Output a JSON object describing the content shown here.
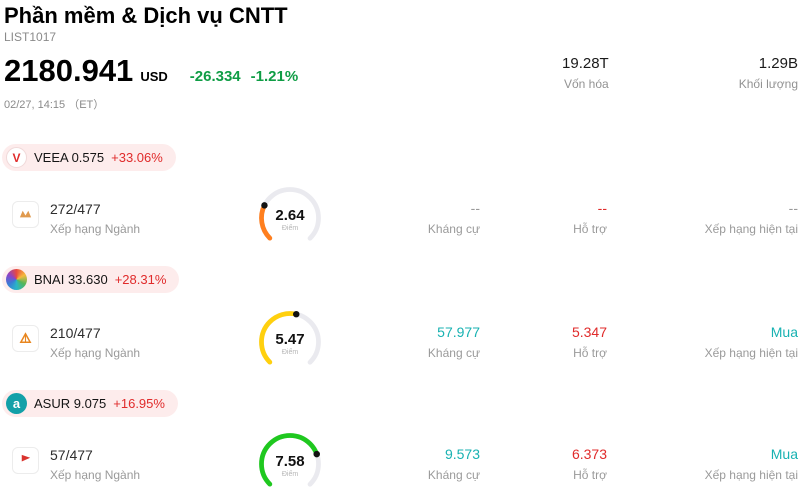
{
  "header": {
    "title": "Phần mềm & Dịch vụ CNTT",
    "list_id": "LIST1017",
    "price": "2180.941",
    "currency": "USD",
    "change_abs": "-26.334",
    "change_pct": "-1.21%",
    "datetime": "02/27, 14:15 （ET）",
    "market_cap": {
      "value": "19.28T",
      "label": "Vốn hóa"
    },
    "volume": {
      "value": "1.29B",
      "label": "Khối lượng"
    }
  },
  "colors": {
    "up": "#e02b2b",
    "down": "#0f9d45",
    "teal": "#18b2b2",
    "muted": "#9a9a9a"
  },
  "icons": {
    "veea_logo": "V",
    "asur_logo": "a"
  },
  "rows": [
    {
      "ticker_price": "VEEA 0.575",
      "change": "+33.06%",
      "rank": "272/477",
      "rank_label": "Xếp hạng Ngành",
      "gauge": {
        "score": "2.64",
        "value": 2.64,
        "max": 10,
        "color": "#ff7f1f",
        "label": "Điểm"
      },
      "resistance": {
        "value": "--",
        "label": "Kháng cự",
        "color": "#9a9a9a"
      },
      "support": {
        "value": "--",
        "label": "Hỗ trợ",
        "color": "#e02b2b"
      },
      "rating": {
        "value": "--",
        "label": "Xếp hạng hiện tại",
        "color": "#9a9a9a"
      }
    },
    {
      "ticker_price": "BNAI 33.630",
      "change": "+28.31%",
      "rank": "210/477",
      "rank_label": "Xếp hạng Ngành",
      "gauge": {
        "score": "5.47",
        "value": 5.47,
        "max": 10,
        "color": "#ffd00e",
        "label": "Điểm"
      },
      "resistance": {
        "value": "57.977",
        "label": "Kháng cự",
        "color": "#18b2b2"
      },
      "support": {
        "value": "5.347",
        "label": "Hỗ trợ",
        "color": "#e02b2b"
      },
      "rating": {
        "value": "Mua",
        "label": "Xếp hạng hiện tại",
        "color": "#18b2b2"
      }
    },
    {
      "ticker_price": "ASUR 9.075",
      "change": "+16.95%",
      "rank": "57/477",
      "rank_label": "Xếp hạng Ngành",
      "gauge": {
        "score": "7.58",
        "value": 7.58,
        "max": 10,
        "color": "#1fc81f",
        "label": "Điểm"
      },
      "resistance": {
        "value": "9.573",
        "label": "Kháng cự",
        "color": "#18b2b2"
      },
      "support": {
        "value": "6.373",
        "label": "Hỗ trợ",
        "color": "#e02b2b"
      },
      "rating": {
        "value": "Mua",
        "label": "Xếp hạng hiện tại",
        "color": "#18b2b2"
      }
    }
  ]
}
